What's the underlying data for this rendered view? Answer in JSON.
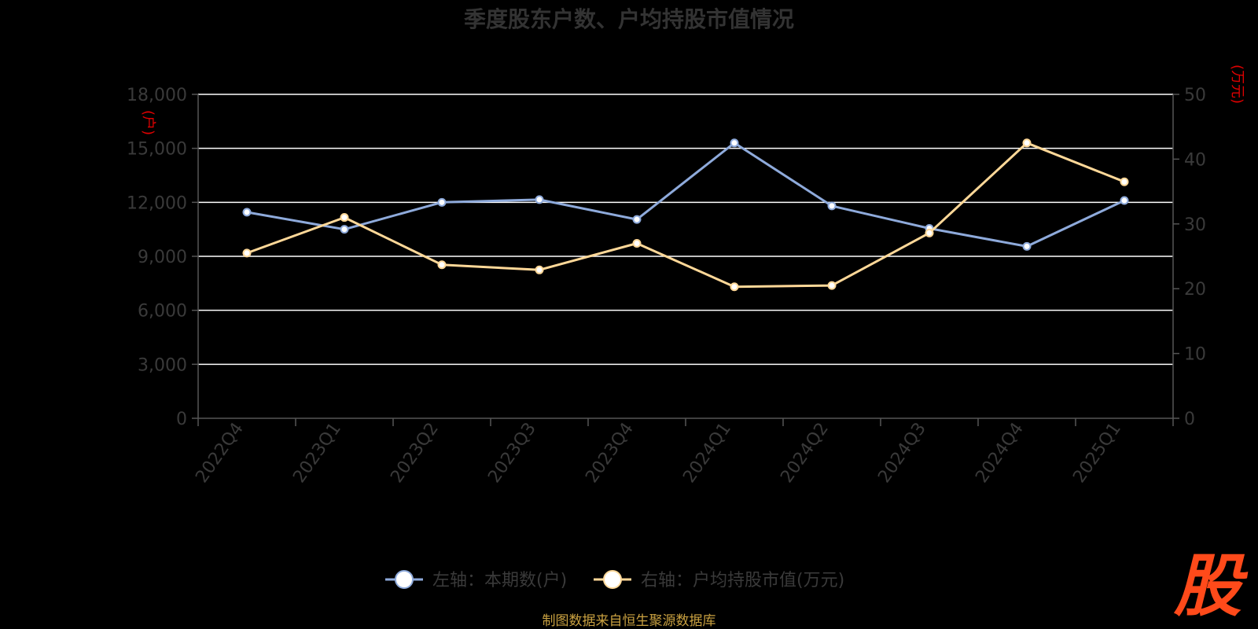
{
  "chart_data": {
    "type": "line",
    "title": "季度股东户数、户均持股市值情况",
    "categories": [
      "2022Q4",
      "2023Q1",
      "2023Q2",
      "2023Q3",
      "2023Q4",
      "2024Q1",
      "2024Q2",
      "2024Q3",
      "2024Q4",
      "2025Q1"
    ],
    "left_axis": {
      "unit": "(户)",
      "range": [
        0,
        18000
      ],
      "ticks": [
        "0",
        "3,000",
        "6,000",
        "9,000",
        "12,000",
        "15,000",
        "18,000"
      ]
    },
    "right_axis": {
      "unit": "(万元)",
      "range": [
        0,
        50
      ],
      "ticks": [
        "0",
        "10",
        "20",
        "30",
        "40",
        "50"
      ]
    },
    "series": [
      {
        "name": "左轴：本期数(户)",
        "axis": "left",
        "color": "#8eaadb",
        "values": [
          11450,
          10500,
          12000,
          12150,
          11050,
          15300,
          11800,
          10550,
          9550,
          12100
        ]
      },
      {
        "name": "右轴：户均持股市值(万元)",
        "axis": "right",
        "color": "#ffd898",
        "values": [
          25.5,
          31.0,
          23.7,
          22.9,
          27.0,
          20.3,
          20.5,
          28.6,
          42.5,
          36.5
        ]
      }
    ],
    "grid": true,
    "legend_position": "bottom",
    "source": "制图数据来自恒生聚源数据库",
    "logo": "股"
  }
}
